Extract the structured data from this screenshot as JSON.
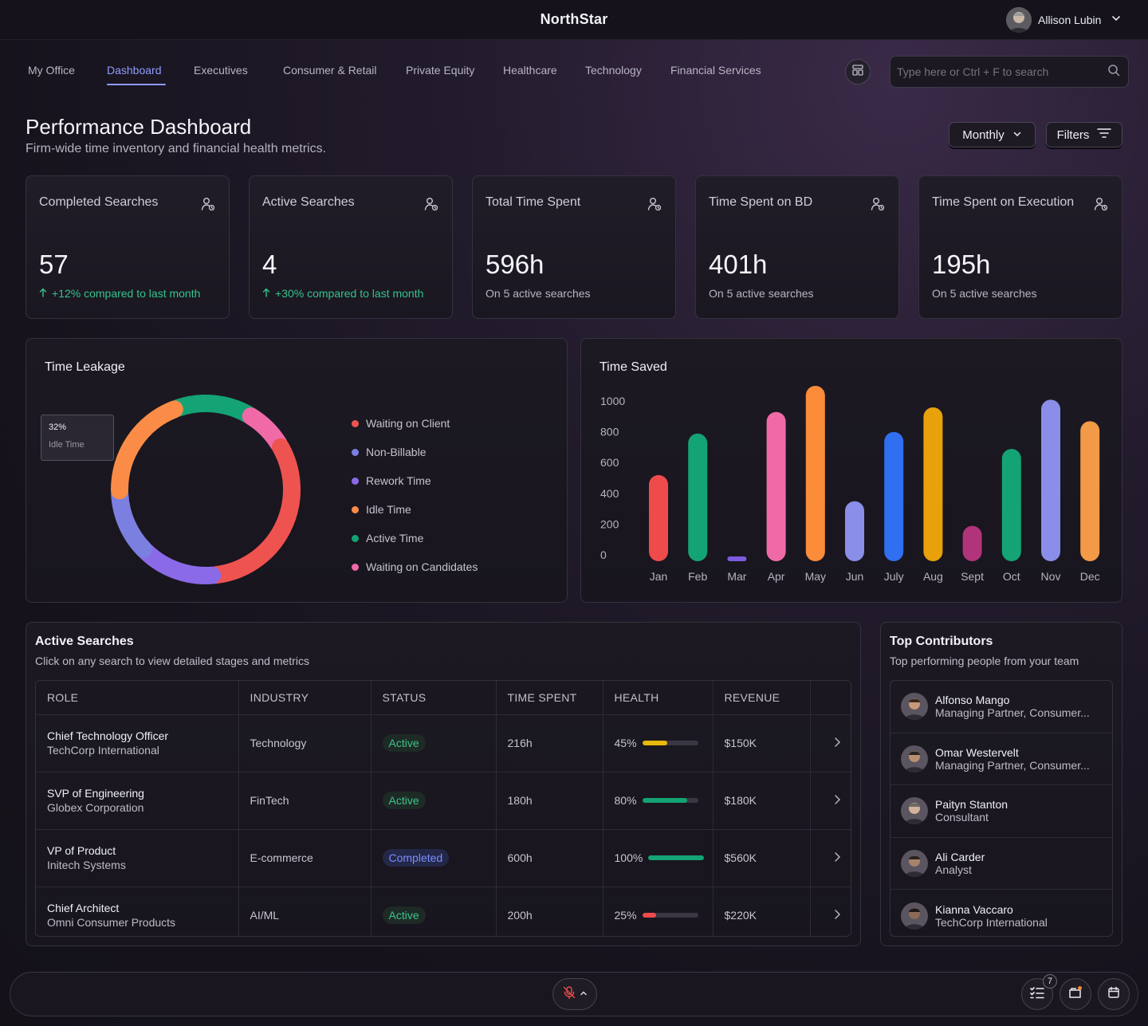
{
  "app": {
    "name": "NorthStar"
  },
  "user": {
    "name": "Allison Lubin"
  },
  "nav": {
    "tabs": [
      {
        "label": "My Office"
      },
      {
        "label": "Dashboard"
      },
      {
        "label": "Executives"
      },
      {
        "label": "Consumer & Retail"
      },
      {
        "label": "Private Equity"
      },
      {
        "label": "Healthcare"
      },
      {
        "label": "Technology"
      },
      {
        "label": "Financial Services"
      }
    ],
    "active": "Dashboard"
  },
  "search": {
    "placeholder": "Type here or Ctrl + F to search",
    "value": ""
  },
  "header": {
    "title": "Performance Dashboard",
    "subtitle": "Firm-wide time inventory and financial health metrics.",
    "period_label": "Monthly",
    "filters_label": "Filters"
  },
  "cards": [
    {
      "title": "Completed Searches",
      "value": "57",
      "foot": "+12% compared to last month",
      "trend": "up"
    },
    {
      "title": "Active Searches",
      "value": "4",
      "foot": "+30% compared to last month",
      "trend": "up"
    },
    {
      "title": "Total Time Spent",
      "value": "596h",
      "foot": "On 5 active searches",
      "trend": "none"
    },
    {
      "title": "Time Spent on BD",
      "value": "401h",
      "foot": "On 5 active searches",
      "trend": "none"
    },
    {
      "title": "Time Spent on Execution",
      "value": "195h",
      "foot": "On 5 active searches",
      "trend": "none"
    }
  ],
  "time_leakage": {
    "title": "Time Leakage",
    "tooltip": {
      "value": "32%",
      "label": "Idle Time"
    },
    "legend": [
      {
        "label": "Waiting on Client",
        "color": "#ef5350"
      },
      {
        "label": "Non-Billable",
        "color": "#7b7fe0"
      },
      {
        "label": "Rework Time",
        "color": "#8b6ae8"
      },
      {
        "label": "Idle Time",
        "color": "#fb8c48"
      },
      {
        "label": "Active Time",
        "color": "#14a374"
      },
      {
        "label": "Waiting on Candidates",
        "color": "#f06aa8"
      }
    ]
  },
  "chart_data": {
    "type": "bar",
    "title": "Time Saved",
    "categories": [
      "Jan",
      "Feb",
      "Mar",
      "Apr",
      "May",
      "Jun",
      "July",
      "Aug",
      "Sept",
      "Oct",
      "Nov",
      "Dec"
    ],
    "values": [
      560,
      830,
      20,
      970,
      1140,
      390,
      840,
      1000,
      230,
      730,
      1050,
      910
    ],
    "colors": [
      "#ef4b4b",
      "#14a374",
      "#7b5ce0",
      "#f06aa8",
      "#fb8c3a",
      "#8a8ee8",
      "#2f6ff0",
      "#e8a10a",
      "#b0347a",
      "#14a374",
      "#8a8ee8",
      "#f29a48"
    ],
    "yticks": [
      0,
      200,
      400,
      600,
      800,
      1000
    ],
    "ylim": [
      0,
      1100
    ],
    "xlabel": "",
    "ylabel": "",
    "grid": false
  },
  "active_searches": {
    "title": "Active Searches",
    "subtitle": "Click on any search to view detailed stages and metrics",
    "columns": [
      "ROLE",
      "INDUSTRY",
      "STATUS",
      "TIME SPENT",
      "HEALTH",
      "REVENUE"
    ],
    "rows": [
      {
        "role": "Chief Technology Officer",
        "company": "TechCorp International",
        "industry": "Technology",
        "status": "Active",
        "time": "216h",
        "health": 45,
        "health_label": "45%",
        "health_color": "#e8b90a",
        "revenue": "$150K"
      },
      {
        "role": "SVP of Engineering",
        "company": "Globex Corporation",
        "industry": "FinTech",
        "status": "Active",
        "time": "180h",
        "health": 80,
        "health_label": "80%",
        "health_color": "#14a374",
        "revenue": "$180K"
      },
      {
        "role": "VP of Product",
        "company": "Initech Systems",
        "industry": "E-commerce",
        "status": "Completed",
        "time": "600h",
        "health": 100,
        "health_label": "100%",
        "health_color": "#14a374",
        "revenue": "$560K"
      },
      {
        "role": "Chief Architect",
        "company": "Omni Consumer Products",
        "industry": "AI/ML",
        "status": "Active",
        "time": "200h",
        "health": 25,
        "health_label": "25%",
        "health_color": "#ef4b4b",
        "revenue": "$220K"
      }
    ]
  },
  "contributors": {
    "title": "Top Contributors",
    "subtitle": "Top performing people from your team",
    "people": [
      {
        "name": "Alfonso Mango",
        "role": "Managing Partner, Consumer..."
      },
      {
        "name": "Omar Westervelt",
        "role": "Managing Partner, Consumer..."
      },
      {
        "name": "Paityn Stanton",
        "role": "Consultant"
      },
      {
        "name": "Ali Carder",
        "role": "Analyst"
      },
      {
        "name": "Kianna Vaccaro",
        "role": "TechCorp International"
      }
    ]
  },
  "dock": {
    "tasks_badge": "7"
  }
}
